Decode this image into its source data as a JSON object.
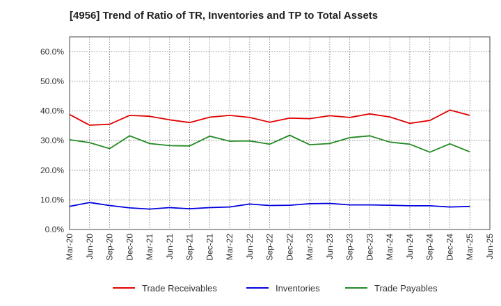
{
  "chart_data": {
    "type": "line",
    "title": "[4956]  Trend of Ratio of TR, Inventories and TP to Total Assets",
    "xlabel": "",
    "ylabel": "",
    "ylim": [
      0,
      65
    ],
    "y_ticks": [
      0,
      10,
      20,
      30,
      40,
      50,
      60
    ],
    "y_tick_labels": [
      "0.0%",
      "10.0%",
      "20.0%",
      "30.0%",
      "40.0%",
      "50.0%",
      "60.0%"
    ],
    "x_tick_labels": [
      "Mar-20",
      "Jun-20",
      "Sep-20",
      "Dec-20",
      "Mar-21",
      "Jun-21",
      "Sep-21",
      "Dec-21",
      "Mar-22",
      "Jun-22",
      "Sep-22",
      "Dec-22",
      "Mar-23",
      "Jun-23",
      "Sep-23",
      "Dec-23",
      "Mar-24",
      "Jun-24",
      "Sep-24",
      "Dec-24",
      "Mar-25",
      "Jun-25"
    ],
    "x": [
      "Mar-20",
      "Jun-20",
      "Sep-20",
      "Dec-20",
      "Mar-21",
      "Jun-21",
      "Sep-21",
      "Dec-21",
      "Mar-22",
      "Jun-22",
      "Sep-22",
      "Dec-22",
      "Mar-23",
      "Jun-23",
      "Sep-23",
      "Dec-23",
      "Mar-24",
      "Jun-24",
      "Sep-24",
      "Dec-24",
      "Mar-25"
    ],
    "grid": true,
    "legend_position": "bottom",
    "series": [
      {
        "name": "Trade Receivables",
        "color": "#e00000",
        "values": [
          38.8,
          35.2,
          35.5,
          38.5,
          38.2,
          37.0,
          36.1,
          37.9,
          38.5,
          37.8,
          36.2,
          37.6,
          37.4,
          38.4,
          37.8,
          39.0,
          38.0,
          35.8,
          36.8,
          40.3,
          38.5
        ]
      },
      {
        "name": "Inventories",
        "color": "#0000dd",
        "values": [
          7.8,
          9.1,
          8.1,
          7.3,
          6.9,
          7.4,
          7.0,
          7.4,
          7.6,
          8.6,
          8.1,
          8.2,
          8.7,
          8.8,
          8.3,
          8.3,
          8.2,
          8.0,
          8.0,
          7.6,
          7.8
        ]
      },
      {
        "name": "Trade Payables",
        "color": "#228822",
        "values": [
          30.3,
          29.3,
          27.3,
          31.6,
          29.0,
          28.3,
          28.2,
          31.5,
          29.8,
          29.9,
          28.8,
          31.8,
          28.6,
          29.0,
          31.0,
          31.6,
          29.5,
          28.8,
          26.1,
          28.9,
          26.2
        ]
      }
    ]
  }
}
